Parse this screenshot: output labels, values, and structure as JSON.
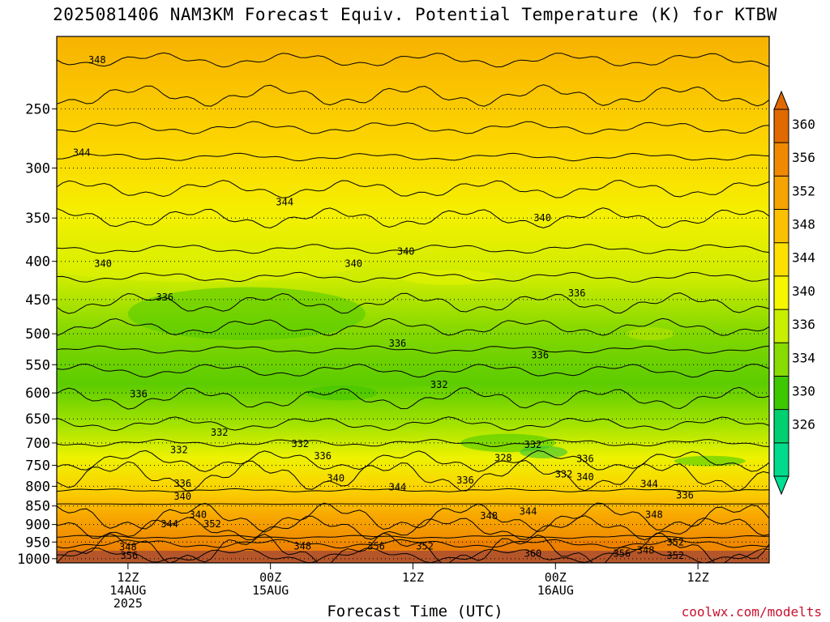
{
  "title": "2025081406 NAM3KM Forecast Equiv. Potential Temperature (K) for KTBW",
  "xlabel": "Forecast Time (UTC)",
  "credit": "coolwx.com/modelts",
  "chart_data": {
    "type": "heatmap",
    "title": "2025081406 NAM3KM Forecast Equiv. Potential Temperature (K) for KTBW",
    "xlabel": "Forecast Time (UTC)",
    "ylabel": "",
    "x_ticks": [
      {
        "hours": 6,
        "label": [
          "12Z",
          "14AUG",
          "2025"
        ]
      },
      {
        "hours": 18,
        "label": [
          "00Z",
          "15AUG"
        ]
      },
      {
        "hours": 30,
        "label": [
          "12Z"
        ]
      },
      {
        "hours": 42,
        "label": [
          "00Z",
          "16AUG"
        ]
      },
      {
        "hours": 54,
        "label": [
          "12Z"
        ]
      }
    ],
    "x_range_hours": [
      0,
      60
    ],
    "y_ticks": [
      250,
      300,
      350,
      400,
      450,
      500,
      550,
      600,
      650,
      700,
      750,
      800,
      850,
      900,
      950,
      1000
    ],
    "y_range_hpa": [
      200,
      1013
    ],
    "y_scale": "log",
    "grid": "dotted horizontal at pressure ticks",
    "colorbar": {
      "labels": [
        360,
        356,
        352,
        348,
        344,
        340,
        336,
        334,
        330,
        326
      ],
      "colors": [
        "#e06a00",
        "#ef8a00",
        "#f6a400",
        "#fbc000",
        "#fde000",
        "#f6f600",
        "#c8ee00",
        "#88dc00",
        "#3ec800",
        "#00d070",
        "#00dc8c"
      ]
    },
    "contour_labels": [
      {
        "v": "348",
        "t": 3.4,
        "p": 215
      },
      {
        "v": "344",
        "t": 2.1,
        "p": 286
      },
      {
        "v": "344",
        "t": 19.2,
        "p": 333
      },
      {
        "v": "340",
        "t": 40.9,
        "p": 350
      },
      {
        "v": "340",
        "t": 29.4,
        "p": 388
      },
      {
        "v": "340",
        "t": 3.9,
        "p": 403
      },
      {
        "v": "340",
        "t": 25.0,
        "p": 403
      },
      {
        "v": "336",
        "t": 9.1,
        "p": 447
      },
      {
        "v": "336",
        "t": 43.8,
        "p": 441
      },
      {
        "v": "336",
        "t": 28.7,
        "p": 515
      },
      {
        "v": "336",
        "t": 40.7,
        "p": 534
      },
      {
        "v": "336",
        "t": 6.9,
        "p": 602
      },
      {
        "v": "332",
        "t": 32.2,
        "p": 585
      },
      {
        "v": "332",
        "t": 13.7,
        "p": 678
      },
      {
        "v": "332",
        "t": 10.3,
        "p": 715
      },
      {
        "v": "332",
        "t": 20.5,
        "p": 702
      },
      {
        "v": "336",
        "t": 22.4,
        "p": 729
      },
      {
        "v": "332",
        "t": 40.1,
        "p": 704
      },
      {
        "v": "328",
        "t": 37.6,
        "p": 733
      },
      {
        "v": "332",
        "t": 42.7,
        "p": 771
      },
      {
        "v": "336",
        "t": 44.5,
        "p": 735
      },
      {
        "v": "336",
        "t": 34.4,
        "p": 785
      },
      {
        "v": "340",
        "t": 23.5,
        "p": 780
      },
      {
        "v": "340",
        "t": 44.5,
        "p": 778
      },
      {
        "v": "344",
        "t": 28.7,
        "p": 802
      },
      {
        "v": "344",
        "t": 49.9,
        "p": 794
      },
      {
        "v": "336",
        "t": 52.9,
        "p": 822
      },
      {
        "v": "336",
        "t": 10.6,
        "p": 793
      },
      {
        "v": "340",
        "t": 10.6,
        "p": 826
      },
      {
        "v": "340",
        "t": 11.9,
        "p": 873
      },
      {
        "v": "344",
        "t": 9.5,
        "p": 899
      },
      {
        "v": "352",
        "t": 13.1,
        "p": 899
      },
      {
        "v": "348",
        "t": 36.4,
        "p": 877
      },
      {
        "v": "344",
        "t": 39.7,
        "p": 864
      },
      {
        "v": "348",
        "t": 50.3,
        "p": 873
      },
      {
        "v": "348",
        "t": 6.0,
        "p": 965
      },
      {
        "v": "356",
        "t": 6.1,
        "p": 990
      },
      {
        "v": "348",
        "t": 20.7,
        "p": 963
      },
      {
        "v": "356",
        "t": 26.9,
        "p": 963
      },
      {
        "v": "352",
        "t": 31.0,
        "p": 963
      },
      {
        "v": "360",
        "t": 40.1,
        "p": 984
      },
      {
        "v": "356",
        "t": 47.6,
        "p": 984
      },
      {
        "v": "348",
        "t": 49.6,
        "p": 975
      },
      {
        "v": "352",
        "t": 52.1,
        "p": 950
      },
      {
        "v": "352",
        "t": 52.1,
        "p": 991
      }
    ]
  }
}
